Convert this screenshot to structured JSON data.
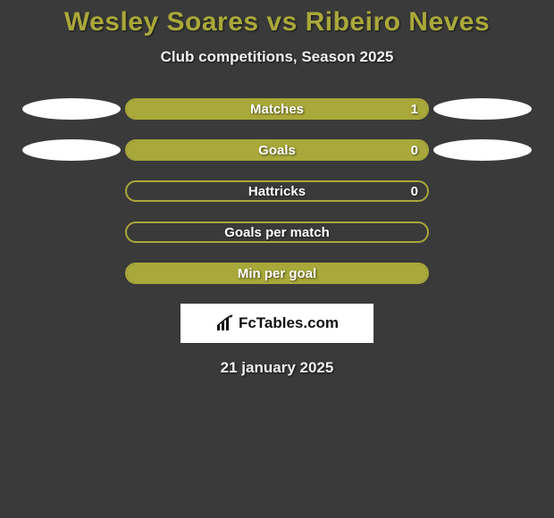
{
  "title": "Wesley Soares vs Ribeiro Neves",
  "subtitle": "Club competitions, Season 2025",
  "date": "21 january 2025",
  "brand": "FcTables.com",
  "colors": {
    "title": "#a9a83a",
    "bar_border": "#a9a83a",
    "bar_fill": "#a9a83a",
    "bar_bg": "transparent",
    "ellipse": "#ffffff",
    "label_text": "#ffffff",
    "value_text": "#ffffff",
    "page_bg": "#3a3a3a"
  },
  "rows": [
    {
      "label": "Matches",
      "value": "1",
      "fill_pct": 100,
      "show_value": true,
      "left_ellipse": true,
      "right_ellipse": true
    },
    {
      "label": "Goals",
      "value": "0",
      "fill_pct": 100,
      "show_value": true,
      "left_ellipse": true,
      "right_ellipse": true
    },
    {
      "label": "Hattricks",
      "value": "0",
      "fill_pct": 0,
      "show_value": true,
      "left_ellipse": false,
      "right_ellipse": false
    },
    {
      "label": "Goals per match",
      "value": "",
      "fill_pct": 0,
      "show_value": false,
      "left_ellipse": false,
      "right_ellipse": false
    },
    {
      "label": "Min per goal",
      "value": "",
      "fill_pct": 100,
      "show_value": false,
      "left_ellipse": false,
      "right_ellipse": false
    }
  ]
}
